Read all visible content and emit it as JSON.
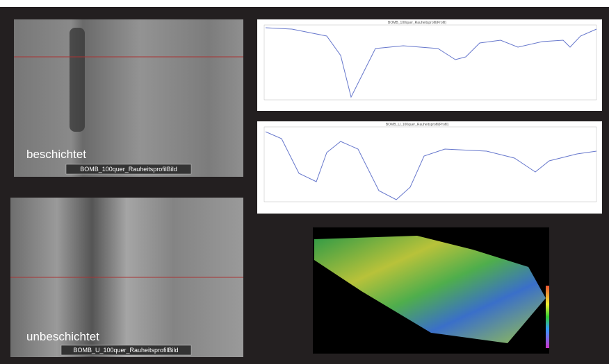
{
  "panels": {
    "coated": {
      "label": "beschichtet",
      "caption": "BOMB_100quer_RauheitsprofilBild"
    },
    "uncoated": {
      "label": "unbeschichtet",
      "caption": "BOMB_U_100quer_RauheitsprofilBild"
    },
    "profile_coated": {
      "title": "BOMB_100quer_Rauheitsprofil(Profil)"
    },
    "profile_uncoated": {
      "title": "BOMB_U_100quer_Rauheitsprofil(Profil)"
    }
  }
}
